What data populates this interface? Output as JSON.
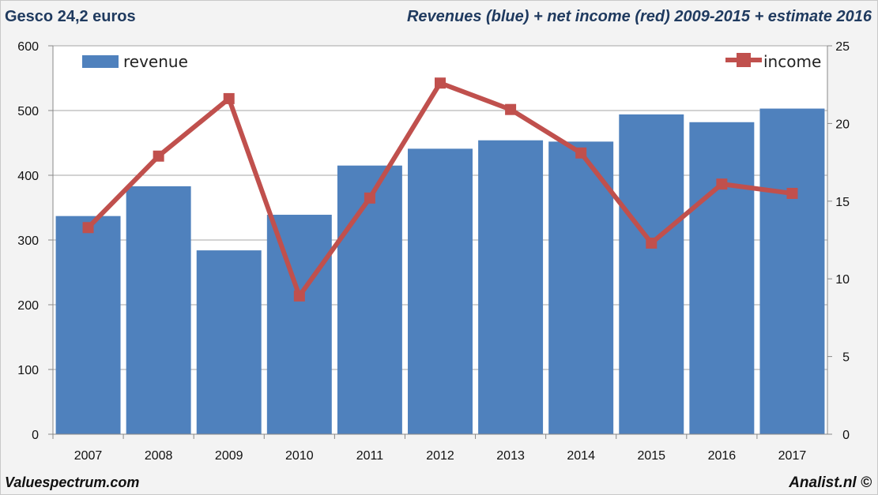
{
  "header": {
    "left_title": "Gesco 24,2 euros",
    "right_title": "Revenues (blue) + net income (red) 2009-2015 + estimate 2016"
  },
  "footer": {
    "left": "Valuespectrum.com",
    "right": "Analist.nl ©"
  },
  "chart_data": {
    "type": "bar",
    "categories": [
      "2007",
      "2008",
      "2009",
      "2010",
      "2011",
      "2012",
      "2013",
      "2014",
      "2015",
      "2016",
      "2017"
    ],
    "series": [
      {
        "name": "revenue",
        "type": "bar",
        "axis": "left",
        "color": "#4f81bd",
        "values": [
          337,
          383,
          284,
          339,
          415,
          441,
          454,
          452,
          494,
          482,
          503
        ]
      },
      {
        "name": "income",
        "type": "line",
        "axis": "right",
        "color": "#c0504d",
        "values": [
          13.3,
          17.9,
          21.6,
          8.9,
          15.2,
          22.6,
          20.9,
          18.1,
          12.3,
          16.1,
          15.5
        ]
      }
    ],
    "ylim": [
      0,
      600
    ],
    "yticks": [
      "0",
      "100",
      "200",
      "300",
      "400",
      "500",
      "600"
    ],
    "y2lim": [
      0,
      25
    ],
    "y2ticks": [
      "0",
      "5",
      "10",
      "15",
      "20",
      "25"
    ],
    "grid": true,
    "legend": [
      {
        "label": "revenue",
        "placement": "top-left"
      },
      {
        "label": "income",
        "placement": "top-right"
      }
    ]
  }
}
